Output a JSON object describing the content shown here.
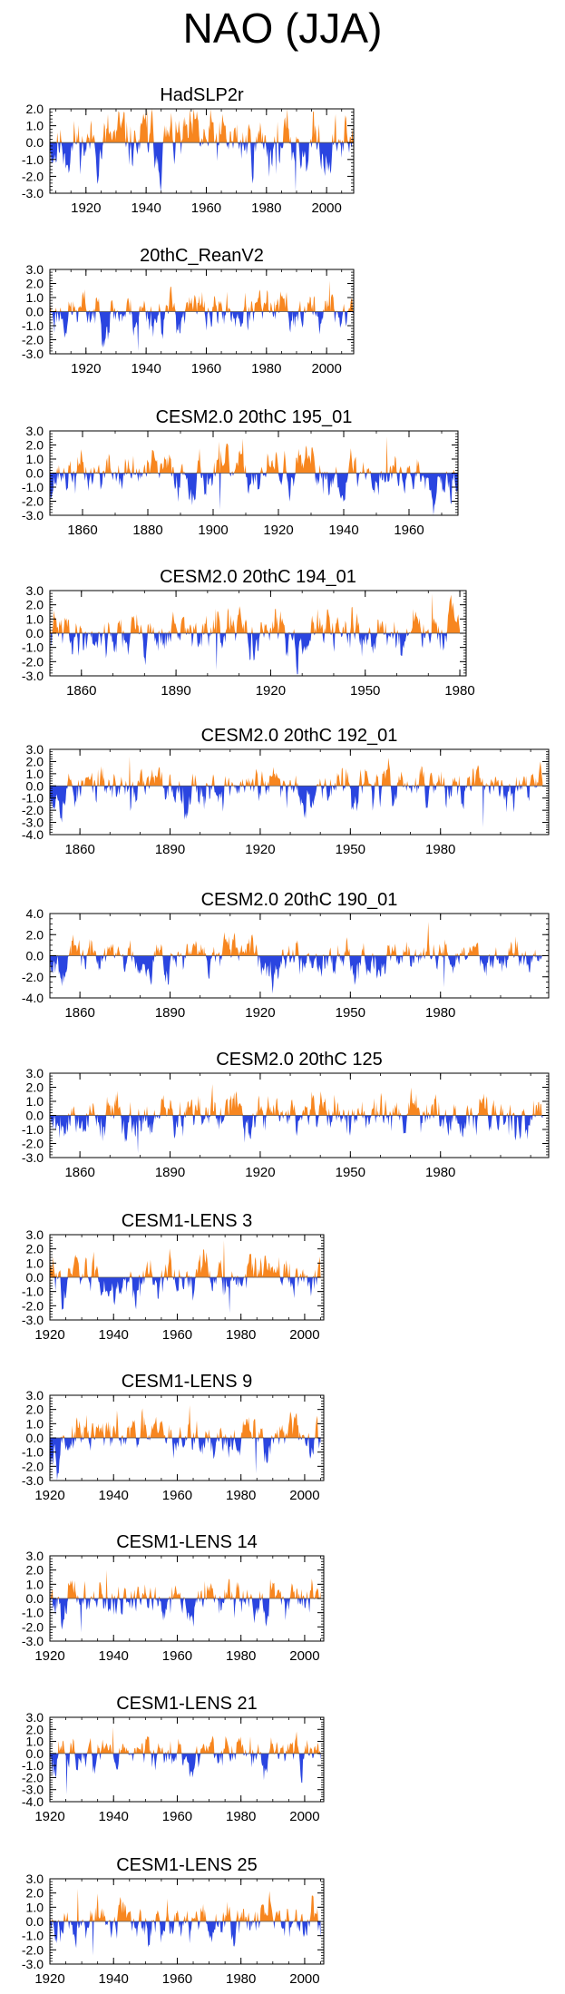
{
  "page": {
    "title": "NAO (JJA)"
  },
  "colors": {
    "positive": "#f7861f",
    "negative": "#2a45e0",
    "axis": "#000000"
  },
  "chart_data": [
    {
      "type": "area",
      "title": "HadSLP2r",
      "xlim": [
        1908,
        2009
      ],
      "ylim": [
        -3.0,
        2.0
      ],
      "yticks": [
        -3.0,
        -2.0,
        -1.0,
        0.0,
        1.0,
        2.0
      ],
      "ytick_labels": [
        "-3.0",
        "-2.0",
        "-1.0",
        "0.0",
        "1.0",
        "2.0"
      ],
      "xticks": [
        1920,
        1940,
        1960,
        1980,
        2000
      ],
      "xtick_labels": [
        "1920",
        "1940",
        "1960",
        "1980",
        "2000"
      ],
      "series_x_start": 1908,
      "series_x_end": 2009,
      "n_points": 404,
      "seed": 11,
      "pos_scale": 1.5,
      "neg_scale": 1.6,
      "amp_peak": 2.9,
      "neg_peak": -2.9
    },
    {
      "type": "area",
      "title": "20thC_ReanV2",
      "xlim": [
        1908,
        2009
      ],
      "ylim": [
        -3.0,
        3.0
      ],
      "yticks": [
        -3.0,
        -2.0,
        -1.0,
        0.0,
        1.0,
        2.0,
        3.0
      ],
      "ytick_labels": [
        "-3.0",
        "-2.0",
        "-1.0",
        "0.0",
        "1.0",
        "2.0",
        "3.0"
      ],
      "xticks": [
        1920,
        1940,
        1960,
        1980,
        2000
      ],
      "xtick_labels": [
        "1920",
        "1940",
        "1960",
        "1980",
        "2000"
      ],
      "series_x_start": 1908,
      "series_x_end": 2009,
      "n_points": 404,
      "seed": 23,
      "pos_scale": 1.2,
      "neg_scale": 1.4,
      "amp_peak": 2.2,
      "neg_peak": -2.8
    },
    {
      "type": "area",
      "title": "CESM2.0 20thC 195_01",
      "xlim": [
        1850,
        1975
      ],
      "ylim": [
        -3.0,
        3.0
      ],
      "yticks": [
        -3.0,
        -2.0,
        -1.0,
        0.0,
        1.0,
        2.0,
        3.0
      ],
      "ytick_labels": [
        "-3.0",
        "-2.0",
        "-1.0",
        "0.0",
        "1.0",
        "2.0",
        "3.0"
      ],
      "xticks": [
        1860,
        1880,
        1900,
        1920,
        1940,
        1960
      ],
      "xtick_labels": [
        "1860",
        "1880",
        "1900",
        "1920",
        "1940",
        "1960"
      ],
      "series_x_start": 1850,
      "series_x_end": 1975,
      "n_points": 500,
      "seed": 37,
      "pos_scale": 1.3,
      "neg_scale": 1.4,
      "amp_peak": 2.6,
      "neg_peak": -2.6
    },
    {
      "type": "area",
      "title": "CESM2.0 20thC 194_01",
      "xlim": [
        1850,
        1982
      ],
      "ylim": [
        -3.0,
        3.0
      ],
      "yticks": [
        -3.0,
        -2.0,
        -1.0,
        0.0,
        1.0,
        2.0,
        3.0
      ],
      "ytick_labels": [
        "-3.0",
        "-2.0",
        "-1.0",
        "0.0",
        "1.0",
        "2.0",
        "3.0"
      ],
      "xticks": [
        1860,
        1890,
        1920,
        1950,
        1980
      ],
      "xtick_labels": [
        "1860",
        "1890",
        "1920",
        "1950",
        "1980"
      ],
      "series_x_start": 1850,
      "series_x_end": 1980,
      "n_points": 520,
      "seed": 41,
      "pos_scale": 1.3,
      "neg_scale": 1.4,
      "amp_peak": 2.8,
      "neg_peak": -2.6
    },
    {
      "type": "area",
      "title": "CESM2.0 20thC 192_01",
      "xlim": [
        1850,
        2016
      ],
      "ylim": [
        -4.0,
        3.0
      ],
      "yticks": [
        -4.0,
        -3.0,
        -2.0,
        -1.0,
        0.0,
        1.0,
        2.0,
        3.0
      ],
      "ytick_labels": [
        "-4.0",
        "-3.0",
        "-2.0",
        "-1.0",
        "0.0",
        "1.0",
        "2.0",
        "3.0"
      ],
      "xticks": [
        1860,
        1890,
        1920,
        1950,
        1980
      ],
      "xtick_labels": [
        "1860",
        "1890",
        "1920",
        "1950",
        "1980"
      ],
      "series_x_start": 1850,
      "series_x_end": 2014,
      "n_points": 656,
      "seed": 53,
      "pos_scale": 1.2,
      "neg_scale": 1.6,
      "amp_peak": 2.4,
      "neg_peak": -3.4
    },
    {
      "type": "area",
      "title": "CESM2.0 20thC 190_01",
      "xlim": [
        1850,
        2016
      ],
      "ylim": [
        -4.0,
        4.0
      ],
      "yticks": [
        -4.0,
        -2.0,
        0.0,
        2.0,
        4.0
      ],
      "ytick_labels": [
        "-4.0",
        "-2.0",
        "0.0",
        "2.0",
        "4.0"
      ],
      "xticks": [
        1860,
        1890,
        1920,
        1950,
        1980
      ],
      "xtick_labels": [
        "1860",
        "1890",
        "1920",
        "1950",
        "1980"
      ],
      "series_x_start": 1850,
      "series_x_end": 2014,
      "n_points": 656,
      "seed": 67,
      "pos_scale": 1.3,
      "neg_scale": 1.5,
      "amp_peak": 3.2,
      "neg_peak": -3.0
    },
    {
      "type": "area",
      "title": "CESM2.0 20thC 125",
      "xlim": [
        1850,
        2016
      ],
      "ylim": [
        -3.0,
        3.0
      ],
      "yticks": [
        -3.0,
        -2.0,
        -1.0,
        0.0,
        1.0,
        2.0,
        3.0
      ],
      "ytick_labels": [
        "-3.0",
        "-2.0",
        "-1.0",
        "0.0",
        "1.0",
        "2.0",
        "3.0"
      ],
      "xticks": [
        1860,
        1890,
        1920,
        1950,
        1980
      ],
      "xtick_labels": [
        "1860",
        "1890",
        "1920",
        "1950",
        "1980"
      ],
      "series_x_start": 1850,
      "series_x_end": 2014,
      "n_points": 656,
      "seed": 79,
      "pos_scale": 1.3,
      "neg_scale": 1.4,
      "amp_peak": 2.5,
      "neg_peak": -2.7
    },
    {
      "type": "area",
      "title": "CESM1-LENS 3",
      "xlim": [
        1920,
        2006
      ],
      "ylim": [
        -3.0,
        3.0
      ],
      "yticks": [
        -3.0,
        -2.0,
        -1.0,
        0.0,
        1.0,
        2.0,
        3.0
      ],
      "ytick_labels": [
        "-3.0",
        "-2.0",
        "-1.0",
        "0.0",
        "1.0",
        "2.0",
        "3.0"
      ],
      "xticks": [
        1920,
        1940,
        1960,
        1980,
        2000
      ],
      "xtick_labels": [
        "1920",
        "1940",
        "1960",
        "1980",
        "2000"
      ],
      "series_x_start": 1920,
      "series_x_end": 2005,
      "n_points": 340,
      "seed": 83,
      "pos_scale": 1.3,
      "neg_scale": 1.3,
      "amp_peak": 2.6,
      "neg_peak": -2.5
    },
    {
      "type": "area",
      "title": "CESM1-LENS 9",
      "xlim": [
        1920,
        2006
      ],
      "ylim": [
        -3.0,
        3.0
      ],
      "yticks": [
        -3.0,
        -2.0,
        -1.0,
        0.0,
        1.0,
        2.0,
        3.0
      ],
      "ytick_labels": [
        "-3.0",
        "-2.0",
        "-1.0",
        "0.0",
        "1.0",
        "2.0",
        "3.0"
      ],
      "xticks": [
        1920,
        1940,
        1960,
        1980,
        2000
      ],
      "xtick_labels": [
        "1920",
        "1940",
        "1960",
        "1980",
        "2000"
      ],
      "series_x_start": 1920,
      "series_x_end": 2005,
      "n_points": 340,
      "seed": 97,
      "pos_scale": 1.2,
      "neg_scale": 1.3,
      "amp_peak": 2.3,
      "neg_peak": -2.5
    },
    {
      "type": "area",
      "title": "CESM1-LENS 14",
      "xlim": [
        1920,
        2006
      ],
      "ylim": [
        -3.0,
        3.0
      ],
      "yticks": [
        -3.0,
        -2.0,
        -1.0,
        0.0,
        1.0,
        2.0,
        3.0
      ],
      "ytick_labels": [
        "-3.0",
        "-2.0",
        "-1.0",
        "0.0",
        "1.0",
        "2.0",
        "3.0"
      ],
      "xticks": [
        1920,
        1940,
        1960,
        1980,
        2000
      ],
      "xtick_labels": [
        "1920",
        "1940",
        "1960",
        "1980",
        "2000"
      ],
      "series_x_start": 1920,
      "series_x_end": 2005,
      "n_points": 340,
      "seed": 101,
      "pos_scale": 1.2,
      "neg_scale": 1.3,
      "amp_peak": 2.0,
      "neg_peak": -2.4
    },
    {
      "type": "area",
      "title": "CESM1-LENS 21",
      "xlim": [
        1920,
        2006
      ],
      "ylim": [
        -4.0,
        3.0
      ],
      "yticks": [
        -4.0,
        -3.0,
        -2.0,
        -1.0,
        0.0,
        1.0,
        2.0,
        3.0
      ],
      "ytick_labels": [
        "-4.0",
        "-3.0",
        "-2.0",
        "-1.0",
        "0.0",
        "1.0",
        "2.0",
        "3.0"
      ],
      "xticks": [
        1920,
        1940,
        1960,
        1980,
        2000
      ],
      "xtick_labels": [
        "1920",
        "1940",
        "1960",
        "1980",
        "2000"
      ],
      "series_x_start": 1920,
      "series_x_end": 2005,
      "n_points": 340,
      "seed": 113,
      "pos_scale": 1.2,
      "neg_scale": 1.4,
      "amp_peak": 2.2,
      "neg_peak": -3.4
    },
    {
      "type": "area",
      "title": "CESM1-LENS 25",
      "xlim": [
        1920,
        2006
      ],
      "ylim": [
        -3.0,
        3.0
      ],
      "yticks": [
        -3.0,
        -2.0,
        -1.0,
        0.0,
        1.0,
        2.0,
        3.0
      ],
      "ytick_labels": [
        "-3.0",
        "-2.0",
        "-1.0",
        "0.0",
        "1.0",
        "2.0",
        "3.0"
      ],
      "xticks": [
        1920,
        1940,
        1960,
        1980,
        2000
      ],
      "xtick_labels": [
        "1920",
        "1940",
        "1960",
        "1980",
        "2000"
      ],
      "series_x_start": 1920,
      "series_x_end": 2005,
      "n_points": 340,
      "seed": 127,
      "pos_scale": 1.2,
      "neg_scale": 1.3,
      "amp_peak": 2.3,
      "neg_peak": -2.4
    }
  ]
}
